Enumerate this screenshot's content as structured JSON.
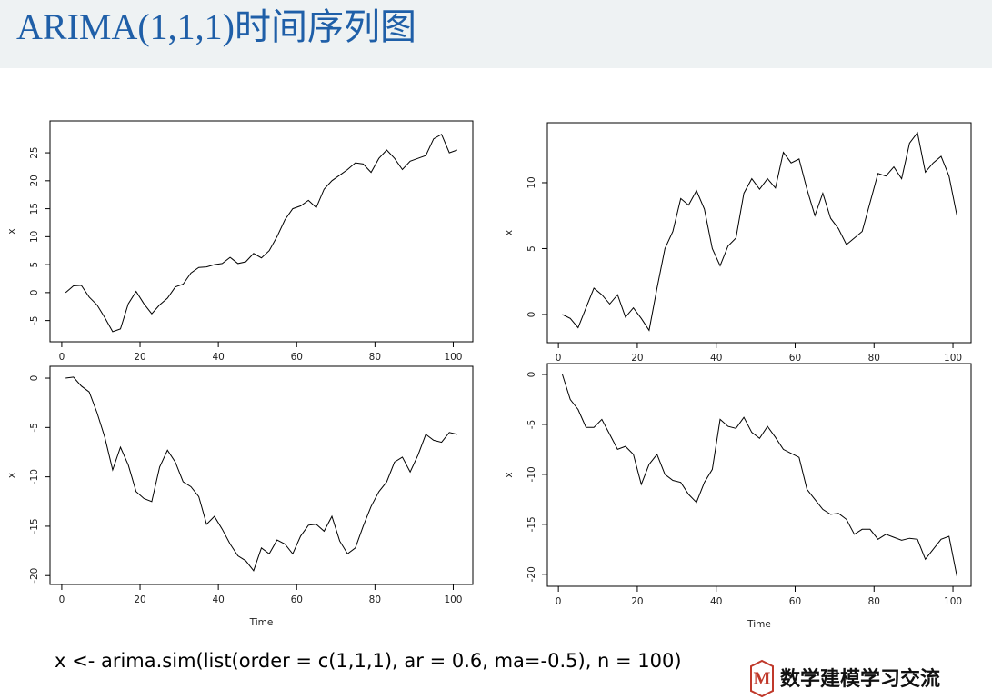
{
  "header": {
    "title": "ARIMA(1,1,1)时间序列图"
  },
  "chart_data": [
    {
      "type": "line",
      "ylabel": "x",
      "color": "#000000",
      "x": [
        1,
        3,
        5,
        7,
        9,
        11,
        13,
        15,
        17,
        19,
        21,
        23,
        25,
        27,
        29,
        31,
        33,
        35,
        37,
        39,
        41,
        43,
        45,
        47,
        49,
        51,
        53,
        55,
        57,
        59,
        61,
        63,
        65,
        67,
        69,
        71,
        73,
        75,
        77,
        79,
        81,
        83,
        85,
        87,
        89,
        91,
        93,
        95,
        97,
        99,
        101
      ],
      "values": [
        0,
        1.2,
        1.3,
        -0.8,
        -2.2,
        -4.5,
        -7,
        -6.5,
        -2,
        0.2,
        -2,
        -3.8,
        -2.2,
        -1,
        1,
        1.5,
        3.5,
        4.5,
        4.6,
        5,
        5.2,
        6.3,
        5.2,
        5.5,
        7,
        6.2,
        7.5,
        10,
        13,
        15,
        15.5,
        16.5,
        15.2,
        18.5,
        20,
        21,
        22,
        23.2,
        23,
        21.5,
        24,
        25.5,
        24,
        22,
        23.5,
        24,
        24.5,
        27.5,
        28.3,
        25,
        25.5
      ],
      "xlim": [
        -3,
        105
      ],
      "xticks": [
        0,
        20,
        40,
        60,
        80,
        100
      ],
      "ylim": [
        -8.8,
        30.7
      ],
      "yticks": [
        -5,
        0,
        5,
        10,
        15,
        20,
        25
      ]
    },
    {
      "type": "line",
      "ylabel": "x",
      "color": "#000000",
      "x": [
        1,
        3,
        5,
        7,
        9,
        11,
        13,
        15,
        17,
        19,
        21,
        23,
        25,
        27,
        29,
        31,
        33,
        35,
        37,
        39,
        41,
        43,
        45,
        47,
        49,
        51,
        53,
        55,
        57,
        59,
        61,
        63,
        65,
        67,
        69,
        71,
        73,
        75,
        77,
        79,
        81,
        83,
        85,
        87,
        89,
        91,
        93,
        95,
        97,
        99,
        101
      ],
      "values": [
        0,
        -0.3,
        -1,
        0.5,
        2,
        1.5,
        0.8,
        1.5,
        -0.2,
        0.5,
        -0.3,
        -1.2,
        2,
        5,
        6.3,
        8.8,
        8.3,
        9.4,
        8,
        5,
        3.7,
        5.2,
        5.8,
        9.2,
        10.3,
        9.5,
        10.3,
        9.6,
        12.3,
        11.5,
        11.8,
        9.5,
        7.5,
        9.2,
        7.3,
        6.5,
        5.3,
        5.8,
        6.3,
        8.5,
        10.7,
        10.5,
        11.2,
        10.3,
        13,
        13.8,
        10.8,
        11.5,
        12,
        10.5,
        7.5
      ],
      "xlim": [
        -2.8,
        104.6
      ],
      "xticks": [
        0,
        20,
        40,
        60,
        80,
        100
      ],
      "ylim": [
        -2.14,
        14.55
      ],
      "yticks": [
        0,
        5,
        10
      ]
    },
    {
      "type": "line",
      "ylabel": "x",
      "xlabel": "Time",
      "color": "#000000",
      "x": [
        1,
        3,
        5,
        7,
        9,
        11,
        13,
        15,
        17,
        19,
        21,
        23,
        25,
        27,
        29,
        31,
        33,
        35,
        37,
        39,
        41,
        43,
        45,
        47,
        49,
        51,
        53,
        55,
        57,
        59,
        61,
        63,
        65,
        67,
        69,
        71,
        73,
        75,
        77,
        79,
        81,
        83,
        85,
        87,
        89,
        91,
        93,
        95,
        97,
        99,
        101
      ],
      "values": [
        0,
        0.1,
        -0.8,
        -1.4,
        -3.5,
        -6,
        -9.3,
        -7,
        -8.8,
        -11.5,
        -12.2,
        -12.5,
        -9,
        -7.3,
        -8.5,
        -10.5,
        -11,
        -12,
        -14.8,
        -14,
        -15.3,
        -16.8,
        -18,
        -18.5,
        -19.5,
        -17.2,
        -17.8,
        -16.4,
        -16.8,
        -17.8,
        -16,
        -14.9,
        -14.8,
        -15.5,
        -14,
        -16.5,
        -17.8,
        -17.2,
        -15,
        -13,
        -11.5,
        -10.5,
        -8.5,
        -8,
        -9.5,
        -7.8,
        -5.7,
        -6.3,
        -6.5,
        -5.5,
        -5.7
      ],
      "xlim": [
        -3,
        105
      ],
      "xticks": [
        0,
        20,
        40,
        60,
        80,
        100
      ],
      "ylim": [
        -20.9,
        1.2
      ],
      "yticks": [
        -20,
        -15,
        -10,
        -5,
        0
      ]
    },
    {
      "type": "line",
      "ylabel": "x",
      "xlabel": "Time",
      "color": "#000000",
      "x": [
        1,
        3,
        5,
        7,
        9,
        11,
        13,
        15,
        17,
        19,
        21,
        23,
        25,
        27,
        29,
        31,
        33,
        35,
        37,
        39,
        41,
        43,
        45,
        47,
        49,
        51,
        53,
        55,
        57,
        59,
        61,
        63,
        65,
        67,
        69,
        71,
        73,
        75,
        77,
        79,
        81,
        83,
        85,
        87,
        89,
        91,
        93,
        95,
        97,
        99,
        101
      ],
      "values": [
        0,
        -2.5,
        -3.5,
        -5.3,
        -5.3,
        -4.5,
        -6,
        -7.5,
        -7.2,
        -8,
        -11,
        -9,
        -8,
        -10,
        -10.6,
        -10.8,
        -12,
        -12.8,
        -10.8,
        -9.5,
        -4.5,
        -5.2,
        -5.4,
        -4.3,
        -5.8,
        -6.4,
        -5.2,
        -6.3,
        -7.5,
        -7.9,
        -8.3,
        -11.5,
        -12.5,
        -13.5,
        -14,
        -13.9,
        -14.5,
        -16,
        -15.5,
        -15.5,
        -16.5,
        -16,
        -16.3,
        -16.6,
        -16.4,
        -16.5,
        -18.5,
        -17.5,
        -16.5,
        -16.2,
        -20.2
      ],
      "xlim": [
        -2.8,
        104.6
      ],
      "xticks": [
        0,
        20,
        40,
        60,
        80,
        100
      ],
      "ylim": [
        -21.2,
        1.09
      ],
      "yticks": [
        -20,
        -15,
        -10,
        -5,
        0
      ]
    }
  ],
  "caption": "x <- arima.sim(list(order = c(1,1,1), ar = 0.6, ma=-0.5), n = 100)",
  "logo": {
    "mark": "M",
    "text": "数学建模学习交流"
  }
}
